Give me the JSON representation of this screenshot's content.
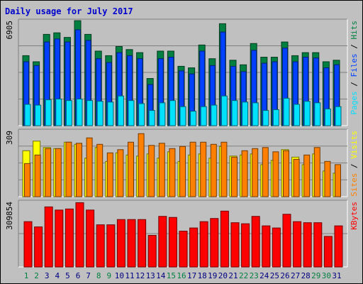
{
  "chart_data": {
    "type": "bar",
    "title": "Daily usage for July 2017",
    "days": [
      "1",
      "2",
      "3",
      "4",
      "5",
      "6",
      "7",
      "8",
      "9",
      "10",
      "11",
      "12",
      "13",
      "14",
      "15",
      "16",
      "17",
      "18",
      "19",
      "20",
      "21",
      "22",
      "23",
      "24",
      "25",
      "26",
      "27",
      "28",
      "29",
      "30",
      "31"
    ],
    "weekend_days": [
      "1",
      "2",
      "8",
      "9",
      "15",
      "16",
      "22",
      "23",
      "29",
      "30"
    ],
    "colors": {
      "hits": "#008040",
      "files": "#0040ff",
      "pages": "#00e0ff",
      "visits": "#ffff00",
      "sites": "#ff8000",
      "kbytes": "#ff0000",
      "title": "#0000cc",
      "weekday_label": "#000080",
      "weekend_label": "#008040"
    },
    "panels": [
      {
        "id": "usage",
        "max_label": "6905",
        "ymax": 6905,
        "legend": [
          {
            "text": "Pages",
            "color": "#00e0ff"
          },
          {
            "text": " / ",
            "color": "#000000"
          },
          {
            "text": "Files",
            "color": "#0040ff"
          },
          {
            "text": " / ",
            "color": "#000000"
          },
          {
            "text": "Hits",
            "color": "#008040"
          }
        ],
        "series": [
          {
            "name": "Hits",
            "color": "#008040",
            "values": [
              4600,
              4200,
              6000,
              6100,
              5800,
              6900,
              6000,
              4900,
              4600,
              5200,
              5000,
              4800,
              3100,
              4900,
              4900,
              3900,
              3800,
              5300,
              4400,
              6700,
              4300,
              4000,
              5400,
              4500,
              4500,
              5500,
              4600,
              4800,
              4800,
              4200,
              4300
            ]
          },
          {
            "name": "Files",
            "color": "#0040ff",
            "values": [
              4200,
              3950,
              5500,
              5700,
              5500,
              6300,
              5600,
              4400,
              4150,
              4800,
              4600,
              4400,
              2700,
              4400,
              4500,
              3600,
              3400,
              4900,
              3950,
              6150,
              3900,
              3550,
              4950,
              4100,
              4200,
              5100,
              4200,
              4500,
              4450,
              3800,
              4000
            ]
          },
          {
            "name": "Pages",
            "color": "#00e0ff",
            "values": [
              1400,
              1350,
              1700,
              1750,
              1650,
              1750,
              1650,
              1600,
              1550,
              1950,
              1650,
              1450,
              1000,
              1500,
              1650,
              1250,
              950,
              1250,
              1350,
              1950,
              1650,
              1550,
              1500,
              1000,
              1050,
              1800,
              1400,
              1600,
              1500,
              1100,
              1250
            ]
          }
        ]
      },
      {
        "id": "visits",
        "max_label": "309",
        "ymax": 309,
        "legend": [
          {
            "text": "Sites",
            "color": "#ff8000"
          },
          {
            "text": " / ",
            "color": "#000000"
          },
          {
            "text": "Visits",
            "color": "#ffff00"
          }
        ],
        "series": [
          {
            "name": "Visits",
            "color": "#ffff00",
            "values": [
              215,
              260,
              230,
              225,
              255,
              245,
              180,
              230,
              165,
              205,
              195,
              190,
              200,
              180,
              210,
              165,
              195,
              200,
              180,
              235,
              190,
              195,
              200,
              150,
              170,
              220,
              185,
              150,
              200,
              120,
              110
            ]
          },
          {
            "name": "Sites",
            "color": "#ff8000",
            "values": [
              155,
              195,
              225,
              225,
              255,
              250,
              275,
              245,
              205,
              220,
              255,
              295,
              240,
              250,
              225,
              235,
              255,
              255,
              245,
              255,
              185,
              215,
              225,
              230,
              210,
              215,
              175,
              195,
              230,
              165,
              150
            ]
          }
        ]
      },
      {
        "id": "kbytes",
        "max_label": "309854",
        "ymax": 309854,
        "legend": [
          {
            "text": "KBytes",
            "color": "#ff0000"
          }
        ],
        "series": [
          {
            "name": "KBytes",
            "color": "#ff0000",
            "values": [
              215000,
              190000,
              285000,
              270000,
              275000,
              305000,
              270000,
              200000,
              200000,
              225000,
              225000,
              225000,
              150000,
              240000,
              235000,
              170000,
              185000,
              215000,
              230000,
              265000,
              210000,
              205000,
              240000,
              195000,
              185000,
              250000,
              215000,
              210000,
              210000,
              145000,
              195000
            ]
          }
        ]
      }
    ]
  }
}
